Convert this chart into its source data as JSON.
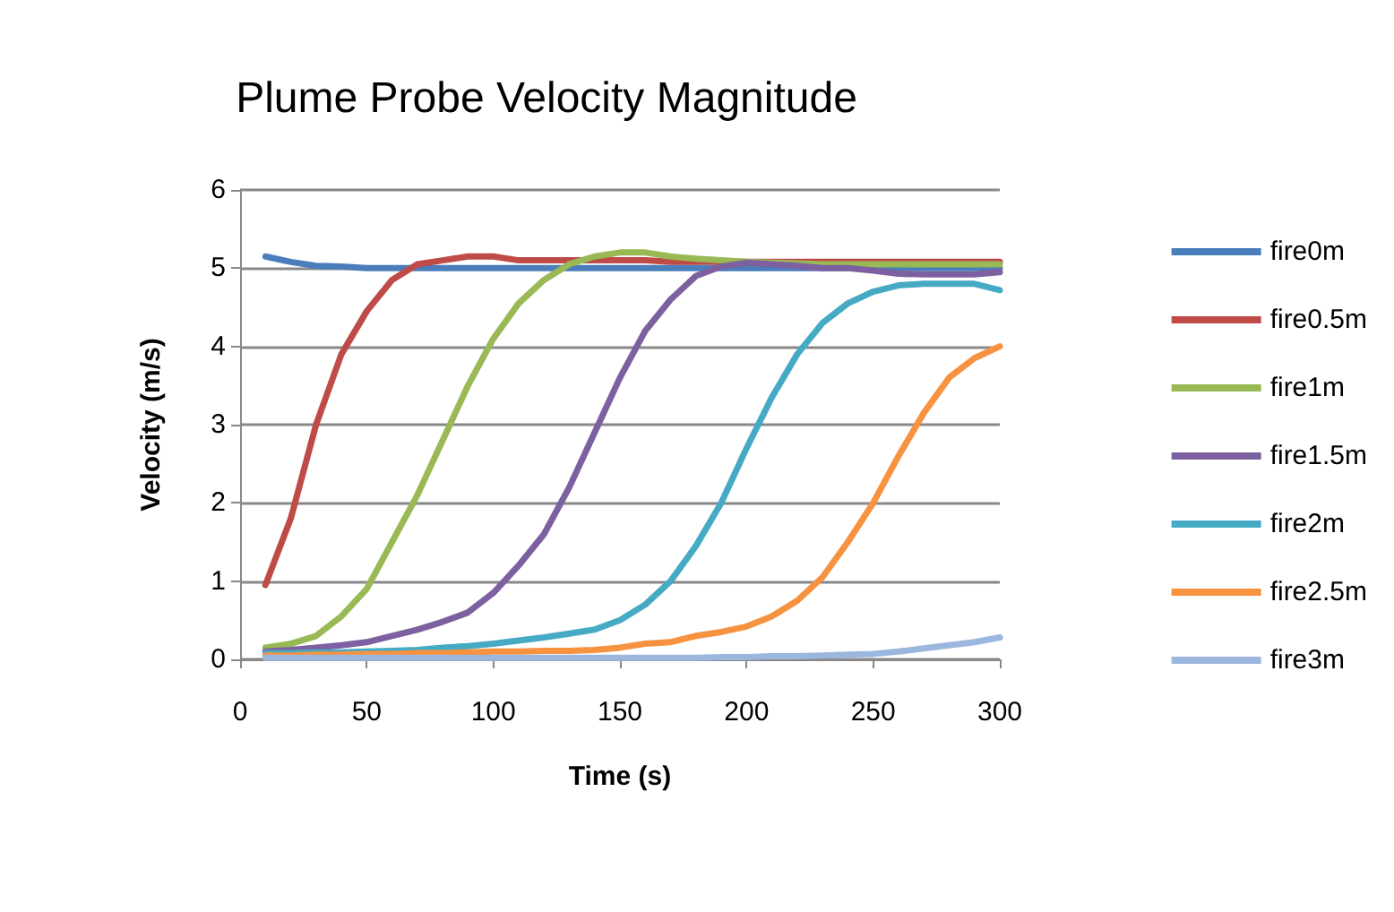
{
  "chart_data": {
    "type": "line",
    "title": "Plume Probe Velocity Magnitude",
    "xlabel": "Time (s)",
    "ylabel": "Velocity (m/s)",
    "x": [
      10,
      20,
      30,
      40,
      50,
      60,
      70,
      80,
      90,
      100,
      110,
      120,
      130,
      140,
      150,
      160,
      170,
      180,
      190,
      200,
      210,
      220,
      230,
      240,
      250,
      260,
      270,
      280,
      290,
      300
    ],
    "xlim": [
      0,
      300
    ],
    "xticks": [
      0,
      50,
      100,
      150,
      200,
      250,
      300
    ],
    "ylim": [
      0,
      6
    ],
    "yticks": [
      0,
      1,
      2,
      3,
      4,
      5,
      6
    ],
    "grid": "y",
    "legend": "right",
    "marker": "none",
    "line_style": "solid",
    "series": [
      {
        "name": "fire0m",
        "color": "#4a7ebb",
        "values": [
          5.15,
          5.08,
          5.03,
          5.02,
          5.0,
          5.0,
          5.0,
          5.0,
          5.0,
          5.0,
          5.0,
          5.0,
          5.0,
          5.0,
          5.0,
          5.0,
          5.0,
          5.0,
          5.0,
          5.0,
          5.0,
          5.0,
          5.0,
          5.0,
          5.0,
          5.0,
          5.0,
          5.0,
          5.0,
          5.0
        ]
      },
      {
        "name": "fire0.5m",
        "color": "#be4b48",
        "values": [
          0.95,
          1.8,
          3.0,
          3.9,
          4.45,
          4.85,
          5.05,
          5.1,
          5.15,
          5.15,
          5.1,
          5.1,
          5.1,
          5.1,
          5.1,
          5.1,
          5.08,
          5.08,
          5.08,
          5.08,
          5.08,
          5.08,
          5.08,
          5.08,
          5.08,
          5.08,
          5.08,
          5.08,
          5.08,
          5.08
        ]
      },
      {
        "name": "fire1m",
        "color": "#98b954",
        "values": [
          0.15,
          0.2,
          0.3,
          0.55,
          0.9,
          1.5,
          2.1,
          2.8,
          3.5,
          4.1,
          4.55,
          4.85,
          5.05,
          5.15,
          5.2,
          5.2,
          5.15,
          5.12,
          5.1,
          5.08,
          5.07,
          5.06,
          5.05,
          5.05,
          5.05,
          5.05,
          5.05,
          5.05,
          5.05,
          5.05
        ]
      },
      {
        "name": "fire1.5m",
        "color": "#7d60a0",
        "values": [
          0.1,
          0.12,
          0.15,
          0.18,
          0.22,
          0.3,
          0.38,
          0.48,
          0.6,
          0.85,
          1.2,
          1.6,
          2.2,
          2.9,
          3.6,
          4.2,
          4.6,
          4.9,
          5.02,
          5.07,
          5.05,
          5.03,
          5.0,
          5.0,
          4.97,
          4.93,
          4.92,
          4.92,
          4.92,
          4.95
        ]
      },
      {
        "name": "fire2m",
        "color": "#46aac5",
        "values": [
          0.08,
          0.08,
          0.09,
          0.09,
          0.1,
          0.11,
          0.12,
          0.15,
          0.17,
          0.2,
          0.24,
          0.28,
          0.33,
          0.38,
          0.5,
          0.7,
          1.0,
          1.45,
          2.0,
          2.7,
          3.35,
          3.9,
          4.3,
          4.55,
          4.7,
          4.78,
          4.8,
          4.8,
          4.8,
          4.72
        ]
      },
      {
        "name": "fire2.5m",
        "color": "#f69240",
        "values": [
          0.05,
          0.05,
          0.06,
          0.06,
          0.07,
          0.07,
          0.08,
          0.08,
          0.09,
          0.1,
          0.1,
          0.11,
          0.11,
          0.12,
          0.15,
          0.2,
          0.22,
          0.3,
          0.35,
          0.42,
          0.55,
          0.75,
          1.05,
          1.5,
          2.0,
          2.6,
          3.15,
          3.6,
          3.85,
          4.0
        ]
      },
      {
        "name": "fire3m",
        "color": "#9bb7dd",
        "values": [
          0.02,
          0.02,
          0.02,
          0.02,
          0.02,
          0.02,
          0.02,
          0.02,
          0.02,
          0.02,
          0.02,
          0.02,
          0.02,
          0.02,
          0.02,
          0.02,
          0.02,
          0.02,
          0.03,
          0.03,
          0.04,
          0.04,
          0.05,
          0.06,
          0.07,
          0.1,
          0.14,
          0.18,
          0.22,
          0.28
        ]
      }
    ]
  }
}
